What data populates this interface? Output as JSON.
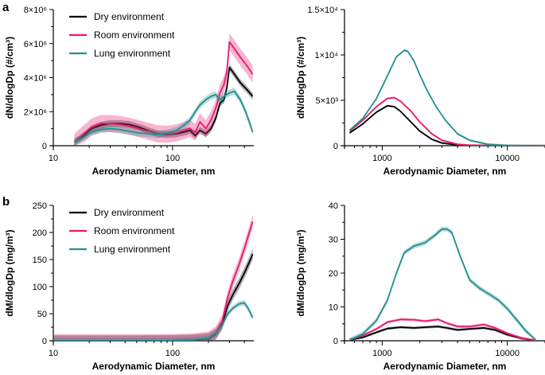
{
  "panels": {
    "a": {
      "letter": "a"
    },
    "b": {
      "letter": "b"
    }
  },
  "colors": {
    "Dry environment": "#000000",
    "Room environment": "#e8196e",
    "Lung environment": "#23908e"
  },
  "chart_data": [
    {
      "id": "a-left",
      "panel": "a",
      "type": "line",
      "xscale": "log",
      "xlim": [
        10,
        480
      ],
      "ylim": [
        0,
        8000000
      ],
      "xticks": [
        10,
        100
      ],
      "xtick_labels": [
        "10",
        "100"
      ],
      "yticks": [
        0,
        2000000,
        4000000,
        6000000,
        8000000
      ],
      "ytick_labels": [
        "0",
        "2×10⁶",
        "4×10⁶",
        "6×10⁶",
        "8×10⁶"
      ],
      "xlabel": "Aerodynamic Diameter, nm",
      "ylabel": "dN/dlogDp (#/cm³)",
      "legend": {
        "position": "top-right",
        "entries": [
          "Dry environment",
          "Room environment",
          "Lung environment"
        ]
      },
      "series": [
        {
          "name": "Dry environment",
          "x": [
            15,
            18,
            21,
            25,
            30,
            36,
            43,
            52,
            62,
            75,
            90,
            108,
            125,
            140,
            155,
            170,
            190,
            210,
            230,
            250,
            270,
            285,
            300,
            330,
            370,
            420,
            470
          ],
          "y": [
            200000,
            600000,
            1000000,
            1200000,
            1300000,
            1300000,
            1250000,
            1100000,
            900000,
            700000,
            650000,
            700000,
            800000,
            900000,
            600000,
            900000,
            700000,
            1000000,
            1600000,
            2500000,
            2700000,
            3400000,
            4600000,
            4200000,
            3700000,
            3300000,
            2900000
          ],
          "band": 200000
        },
        {
          "name": "Room environment",
          "x": [
            15,
            18,
            21,
            25,
            30,
            36,
            43,
            52,
            62,
            75,
            90,
            108,
            125,
            140,
            155,
            170,
            190,
            210,
            230,
            250,
            270,
            285,
            300,
            330,
            370,
            420,
            470
          ],
          "y": [
            200000,
            700000,
            1100000,
            1300000,
            1300000,
            1250000,
            1150000,
            1000000,
            850000,
            700000,
            680000,
            750000,
            900000,
            1000000,
            800000,
            1400000,
            1000000,
            1500000,
            2200000,
            3100000,
            3600000,
            4300000,
            6100000,
            5700000,
            5200000,
            4700000,
            4200000
          ],
          "band": 500000
        },
        {
          "name": "Lung environment",
          "x": [
            15,
            18,
            21,
            25,
            30,
            36,
            43,
            52,
            62,
            75,
            90,
            108,
            125,
            140,
            155,
            170,
            190,
            210,
            230,
            250,
            270,
            300,
            330,
            370,
            410,
            440,
            470
          ],
          "y": [
            200000,
            500000,
            800000,
            950000,
            1000000,
            950000,
            850000,
            750000,
            700000,
            650000,
            750000,
            900000,
            1200000,
            1500000,
            2000000,
            2400000,
            2700000,
            2900000,
            3000000,
            2700000,
            2900000,
            3100000,
            3200000,
            2700000,
            2000000,
            1400000,
            800000
          ],
          "band": 200000
        }
      ]
    },
    {
      "id": "a-right",
      "panel": "a",
      "type": "line",
      "xscale": "log",
      "xlim": [
        500,
        20000
      ],
      "ylim": [
        0,
        15000
      ],
      "xticks": [
        1000,
        10000
      ],
      "xtick_labels": [
        "1000",
        "10000"
      ],
      "yticks": [
        0,
        5000,
        10000,
        15000
      ],
      "ytick_labels": [
        "0",
        "5×10³",
        "1×10⁴",
        "1.5×10⁴"
      ],
      "xlabel": "Aerodynamic Diameter, nm",
      "ylabel": "dN/dlogDp (#/cm³)",
      "series": [
        {
          "name": "Dry environment",
          "x": [
            550,
            700,
            900,
            1100,
            1250,
            1400,
            1700,
            2000,
            2500,
            3000,
            4000,
            5000,
            7000,
            10000,
            15000,
            20000
          ],
          "y": [
            1400,
            2400,
            3700,
            4400,
            4300,
            3800,
            2600,
            1600,
            700,
            300,
            80,
            30,
            10,
            0,
            0,
            0
          ],
          "band": 100
        },
        {
          "name": "Room environment",
          "x": [
            550,
            700,
            900,
            1100,
            1250,
            1400,
            1700,
            2000,
            2500,
            3000,
            4000,
            5000,
            7000,
            10000,
            15000,
            20000
          ],
          "y": [
            1600,
            2800,
            4300,
            5200,
            5300,
            4900,
            3800,
            2600,
            1300,
            600,
            150,
            50,
            10,
            0,
            0,
            0
          ],
          "band": 120
        },
        {
          "name": "Lung environment",
          "x": [
            550,
            700,
            900,
            1100,
            1300,
            1500,
            1600,
            1800,
            2000,
            2300,
            2700,
            3200,
            4000,
            5000,
            7000,
            10000,
            15000,
            20000
          ],
          "y": [
            1700,
            3000,
            5200,
            7700,
            9800,
            10500,
            10400,
            9300,
            7800,
            6000,
            4300,
            2800,
            1300,
            600,
            150,
            30,
            0,
            0
          ],
          "band": 120
        }
      ]
    },
    {
      "id": "b-left",
      "panel": "b",
      "type": "line",
      "xscale": "log",
      "xlim": [
        10,
        480
      ],
      "ylim": [
        0,
        250
      ],
      "xticks": [
        10,
        100
      ],
      "xtick_labels": [
        "10",
        "100"
      ],
      "yticks": [
        0,
        50,
        100,
        150,
        200,
        250
      ],
      "ytick_labels": [
        "0",
        "50",
        "100",
        "150",
        "200",
        "250"
      ],
      "xlabel": "Aerodynamic Diameter, nm",
      "ylabel": "dM/dlogDp (mg/m³)",
      "legend": {
        "position": "top-right",
        "entries": [
          "Dry environment",
          "Room environment",
          "Lung environment"
        ]
      },
      "series": [
        {
          "name": "Dry environment",
          "x": [
            10,
            50,
            100,
            150,
            200,
            230,
            260,
            290,
            320,
            360,
            400,
            440,
            470
          ],
          "y": [
            0,
            0,
            0.3,
            1.5,
            4,
            12,
            30,
            65,
            85,
            105,
            125,
            145,
            160
          ],
          "band": 10
        },
        {
          "name": "Room environment",
          "x": [
            10,
            50,
            100,
            150,
            200,
            230,
            260,
            290,
            320,
            360,
            400,
            440,
            470
          ],
          "y": [
            0,
            0,
            0.3,
            1.5,
            5,
            14,
            35,
            80,
            110,
            140,
            170,
            200,
            220
          ],
          "band": 12
        },
        {
          "name": "Lung environment",
          "x": [
            10,
            50,
            100,
            150,
            200,
            230,
            260,
            290,
            320,
            360,
            400,
            430,
            470
          ],
          "y": [
            0,
            0,
            0.3,
            1.5,
            5,
            13,
            28,
            50,
            60,
            68,
            70,
            60,
            43
          ],
          "band": 5
        }
      ]
    },
    {
      "id": "b-right",
      "panel": "b",
      "type": "line",
      "xscale": "log",
      "xlim": [
        500,
        20000
      ],
      "ylim": [
        0,
        40
      ],
      "xticks": [
        1000,
        10000
      ],
      "xtick_labels": [
        "1000",
        "10000"
      ],
      "yticks": [
        0,
        10,
        20,
        30,
        40
      ],
      "ytick_labels": [
        "0",
        "10",
        "20",
        "30",
        "40"
      ],
      "xlabel": "Aerodynamic Diameter, nm",
      "ylabel": "dM/dlogDp (mg/m³)",
      "series": [
        {
          "name": "Dry environment",
          "x": [
            550,
            700,
            900,
            1100,
            1400,
            1800,
            2200,
            2800,
            3300,
            4000,
            5000,
            6500,
            8000,
            10000,
            13000,
            17000
          ],
          "y": [
            0.2,
            1,
            2.5,
            3.6,
            4,
            3.8,
            4,
            4.2,
            3.8,
            3.2,
            3.5,
            3.8,
            3.2,
            1.8,
            0.7,
            0
          ],
          "band": 0.4
        },
        {
          "name": "Room environment",
          "x": [
            550,
            700,
            900,
            1100,
            1400,
            1800,
            2200,
            2800,
            3300,
            4000,
            5000,
            6500,
            8000,
            10000,
            13000,
            17000
          ],
          "y": [
            0.3,
            1.5,
            3.5,
            5.5,
            6.3,
            6.2,
            5.8,
            6.3,
            5.2,
            4.2,
            4.2,
            4.8,
            3.8,
            2.2,
            0.8,
            0
          ],
          "band": 0.4
        },
        {
          "name": "Lung environment",
          "x": [
            550,
            700,
            900,
            1100,
            1300,
            1500,
            1800,
            2200,
            2600,
            3000,
            3300,
            3600,
            4200,
            5000,
            6000,
            7000,
            8500,
            10000,
            12000,
            14000,
            17000
          ],
          "y": [
            0.2,
            2,
            6,
            12,
            20,
            26,
            28,
            29,
            31,
            33,
            33,
            32,
            25,
            18,
            15.5,
            14,
            12,
            9.5,
            6,
            3,
            0
          ],
          "band": 0.7
        }
      ]
    }
  ]
}
